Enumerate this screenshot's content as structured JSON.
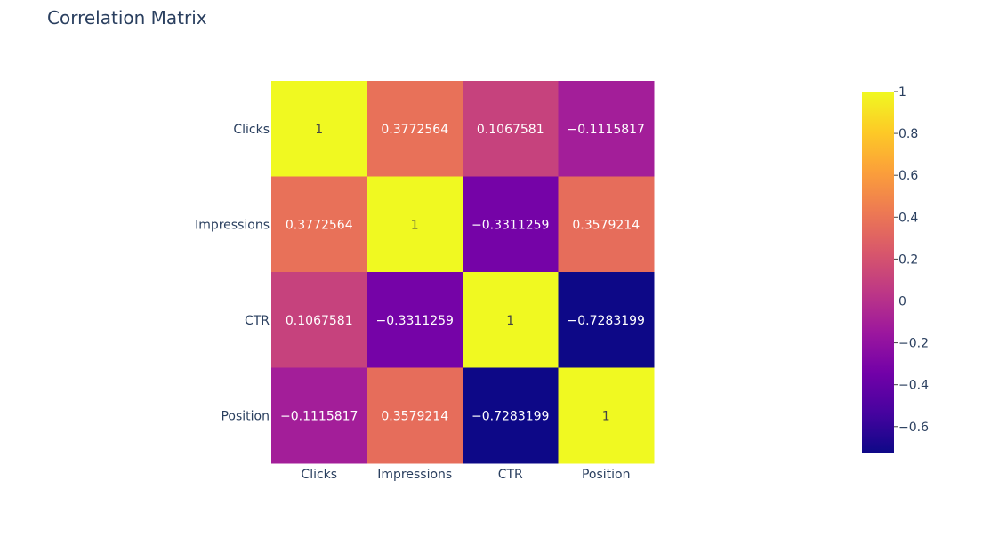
{
  "chart_data": {
    "type": "heatmap",
    "title": "Correlation Matrix",
    "x_categories": [
      "Clicks",
      "Impressions",
      "CTR",
      "Position"
    ],
    "y_categories": [
      "Clicks",
      "Impressions",
      "CTR",
      "Position"
    ],
    "values": [
      [
        1,
        0.3772564,
        0.1067581,
        -0.1115817
      ],
      [
        0.3772564,
        1,
        -0.3311259,
        0.3579214
      ],
      [
        0.1067581,
        -0.3311259,
        1,
        -0.7283199
      ],
      [
        -0.1115817,
        0.3579214,
        -0.7283199,
        1
      ]
    ],
    "labels": [
      [
        "1",
        "0.3772564",
        "0.1067581",
        "−0.1115817"
      ],
      [
        "0.3772564",
        "1",
        "−0.3311259",
        "0.3579214"
      ],
      [
        "0.1067581",
        "−0.3311259",
        "1",
        "−0.7283199"
      ],
      [
        "−0.1115817",
        "0.3579214",
        "−0.7283199",
        "1"
      ]
    ],
    "colorscale": "Plasma",
    "colorscale_stops": [
      "#0d0887",
      "#46039f",
      "#7201a8",
      "#9c179e",
      "#bd3786",
      "#d8576b",
      "#ed7953",
      "#fb9f3a",
      "#fdca26",
      "#f0f921"
    ],
    "zmin": -0.7283199,
    "zmax": 1,
    "colorbar_ticks": [
      1,
      0.8,
      0.6,
      0.4,
      0.2,
      0,
      -0.2,
      -0.4,
      -0.6
    ],
    "colorbar_tick_labels": [
      "1",
      "0.8",
      "0.6",
      "0.4",
      "0.2",
      "0",
      "−0.2",
      "−0.4",
      "−0.6"
    ],
    "legend_position": "right"
  }
}
